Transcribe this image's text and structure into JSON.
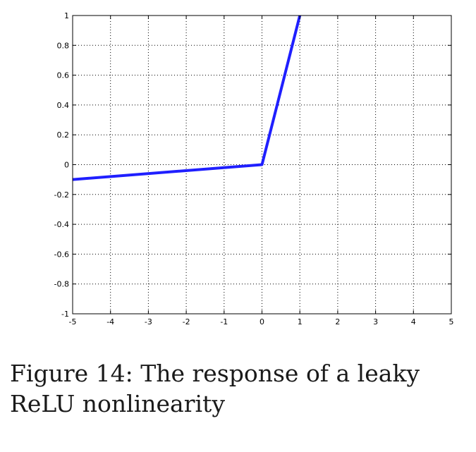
{
  "chart_data": {
    "type": "line",
    "title": "",
    "xlabel": "",
    "ylabel": "",
    "xlim": [
      -5,
      5
    ],
    "ylim": [
      -1,
      1
    ],
    "grid": true,
    "x_ticks": [
      "-5",
      "-4",
      "-3",
      "-2",
      "-1",
      "0",
      "1",
      "2",
      "3",
      "4",
      "5"
    ],
    "y_ticks": [
      "1",
      "0.8",
      "0.6",
      "0.4",
      "0.2",
      "0",
      "-0.2",
      "-0.4",
      "-0.6",
      "-0.8",
      "-1"
    ],
    "series": [
      {
        "x": [
          -5,
          0,
          1
        ],
        "y": [
          -0.1,
          0,
          1
        ],
        "color": "#1f1fff"
      }
    ]
  },
  "caption": {
    "text": "Figure 14: The response of a leaky ReLU nonlinearity"
  }
}
